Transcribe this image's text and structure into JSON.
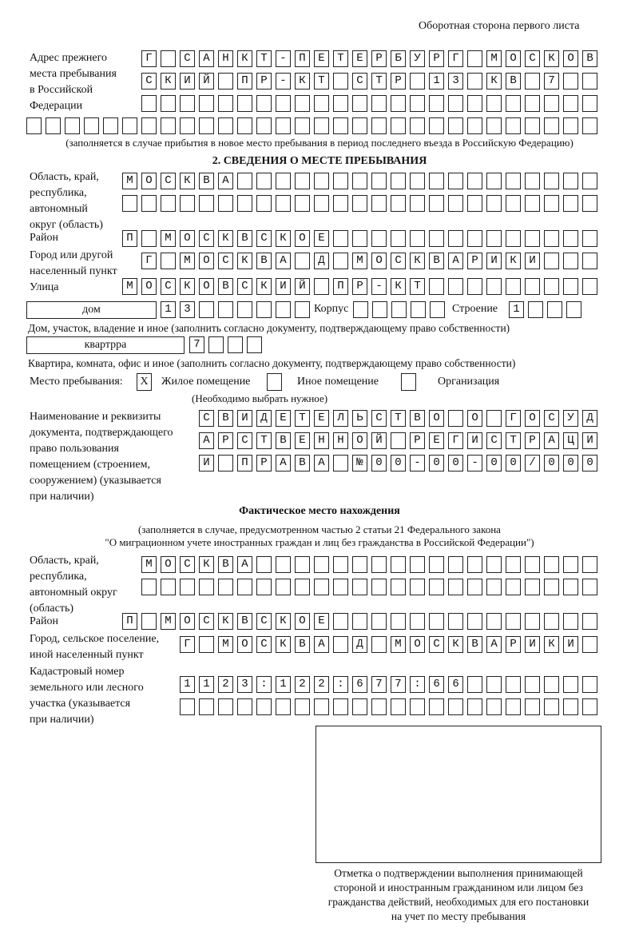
{
  "header": {
    "side_note": "Оборотная сторона первого листа"
  },
  "previous_address": {
    "label": [
      "Адрес прежнего",
      "места пребывания",
      "в Российской",
      "Федерации"
    ],
    "rows": [
      "Г САНКТ-ПЕТЕРБУРГ МОСКОВ",
      "СКИЙ ПР-КТ СТР 13 КВ 7",
      "",
      ""
    ],
    "note": "(заполняется в случае прибытия в новое место пребывания в период последнего въезда в Российскую Федерацию)"
  },
  "section2": {
    "title": "2. СВЕДЕНИЯ О МЕСТЕ ПРЕБЫВАНИЯ",
    "region_label": [
      "Область, край,",
      "республика,",
      "автономный",
      "округ (область)"
    ],
    "region_rows": [
      "МОСКВА",
      ""
    ],
    "district_label": "Район",
    "district": "П МОСКВСКОЕ",
    "city_label": [
      "Город или другой",
      "населенный пункт"
    ],
    "city": "Г МОСКВА Д МОСКВАРИКИ",
    "street_label": "Улица",
    "street": "МОСКОВСКИЙ ПР-КТ",
    "house_type": "дом",
    "house_number": "13",
    "korpus_label": "Корпус",
    "korpus": "",
    "building_label": "Строение",
    "building": "1",
    "house_note": "Дом, участок, владение и иное (заполнить согласно документу, подтверждающему право собственности)",
    "apartment_type": "квартрра",
    "apartment_number": "7",
    "apartment_note": "Квартира, комната, офис и иное (заполнить согласно документу, подтверждающему право собственности)",
    "stay_place_label": "Место пребывания:",
    "stay_options": [
      {
        "label": "Жилое помещение",
        "mark": "X"
      },
      {
        "label": "Иное помещение",
        "mark": ""
      },
      {
        "label": "Организация",
        "mark": ""
      }
    ],
    "stay_note": "(Необходимо выбрать нужное)",
    "document_label": [
      "Наименование и реквизиты",
      "документа, подтверждающего",
      "право пользования",
      "помещением (строением,",
      "сооружением) (указывается",
      "при наличии)"
    ],
    "document_rows": [
      "СВИДЕТЕЛЬСТВО О ГОСУД",
      "АРСТВЕННОЙ РЕГИСТРАЦИ",
      "И ПРАВА №00-00-00/000"
    ]
  },
  "actual_location": {
    "title": "Фактическое место нахождения",
    "note": [
      "(заполняется в случае, предусмотренном частью 2 статьи 21 Федерального закона",
      "\"О миграционном учете иностранных граждан и лиц без гражданства в Российской Федерации\")"
    ],
    "region_label": [
      "Область, край,",
      "республика,",
      "автономный округ",
      "(область)"
    ],
    "region_rows": [
      "МОСКВА",
      ""
    ],
    "district_label": "Район",
    "district": "П МОСКВСКОЕ",
    "city_label": [
      "Город, сельское поселение,",
      "иной населенный пункт"
    ],
    "city": "Г МОСКВА Д МОСКВАРИКИ",
    "cadastral_label": [
      "Кадастровый номер",
      "земельного или лесного",
      "участка (указывается",
      "при наличии)"
    ],
    "cadastral_rows": [
      "1123:122:677:66",
      ""
    ]
  },
  "confirmation": {
    "caption": [
      "Отметка о подтверждении выполнения принимающей",
      "стороной и иностранным гражданином или лицом без",
      "гражданства действий, необходимых для его постановки",
      "на учет по месту пребывания"
    ]
  }
}
